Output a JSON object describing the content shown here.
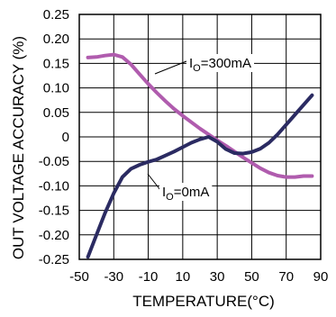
{
  "chart_data": {
    "type": "line",
    "xlabel": "TEMPERATURE(°C)",
    "ylabel": "OUT VOLTAGE ACCURACY (%)",
    "xlim": [
      -50,
      90
    ],
    "ylim": [
      -0.25,
      0.25
    ],
    "x_ticks": [
      -50,
      -30,
      -10,
      10,
      30,
      50,
      70,
      90
    ],
    "x_tick_labels": [
      "-50",
      "-30",
      "-10",
      "10",
      "30",
      "50",
      "70",
      "90"
    ],
    "y_ticks": [
      0.25,
      0.2,
      0.15,
      0.1,
      0.05,
      0,
      -0.05,
      -0.1,
      -0.15,
      -0.2,
      -0.25
    ],
    "y_tick_labels": [
      "0.25",
      "0.20",
      "0.15",
      "0.10",
      "0.05",
      "0",
      "-0.05",
      "-0.10",
      "-0.15",
      "-0.20",
      "-0.25"
    ],
    "grid": true,
    "series": [
      {
        "name": "",
        "color": "#b05cae",
        "label_main": "I",
        "label_sub": "O",
        "label_rest": "=300mA",
        "x": [
          -45,
          -40,
          -35,
          -30,
          -25,
          -20,
          -15,
          -10,
          -5,
          0,
          5,
          10,
          15,
          20,
          25,
          30,
          35,
          40,
          45,
          50,
          55,
          60,
          65,
          70,
          75,
          80,
          85
        ],
        "y": [
          0.162,
          0.163,
          0.166,
          0.168,
          0.163,
          0.148,
          0.128,
          0.108,
          0.09,
          0.073,
          0.057,
          0.043,
          0.03,
          0.017,
          0.005,
          -0.007,
          -0.018,
          -0.03,
          -0.042,
          -0.053,
          -0.064,
          -0.073,
          -0.079,
          -0.082,
          -0.082,
          -0.08,
          -0.08
        ]
      },
      {
        "name": "",
        "color": "#2b2b62",
        "label_main": "I",
        "label_sub": "O",
        "label_rest": "=0mA",
        "x": [
          -45,
          -40,
          -35,
          -30,
          -25,
          -20,
          -15,
          -10,
          -5,
          0,
          5,
          10,
          15,
          20,
          25,
          30,
          35,
          40,
          45,
          50,
          55,
          60,
          65,
          70,
          75,
          80,
          85
        ],
        "y": [
          -0.245,
          -0.2,
          -0.155,
          -0.115,
          -0.082,
          -0.065,
          -0.057,
          -0.051,
          -0.046,
          -0.038,
          -0.03,
          -0.021,
          -0.012,
          -0.005,
          0.0,
          -0.01,
          -0.025,
          -0.033,
          -0.034,
          -0.031,
          -0.024,
          -0.012,
          0.005,
          0.025,
          0.045,
          0.065,
          0.085
        ]
      }
    ]
  }
}
